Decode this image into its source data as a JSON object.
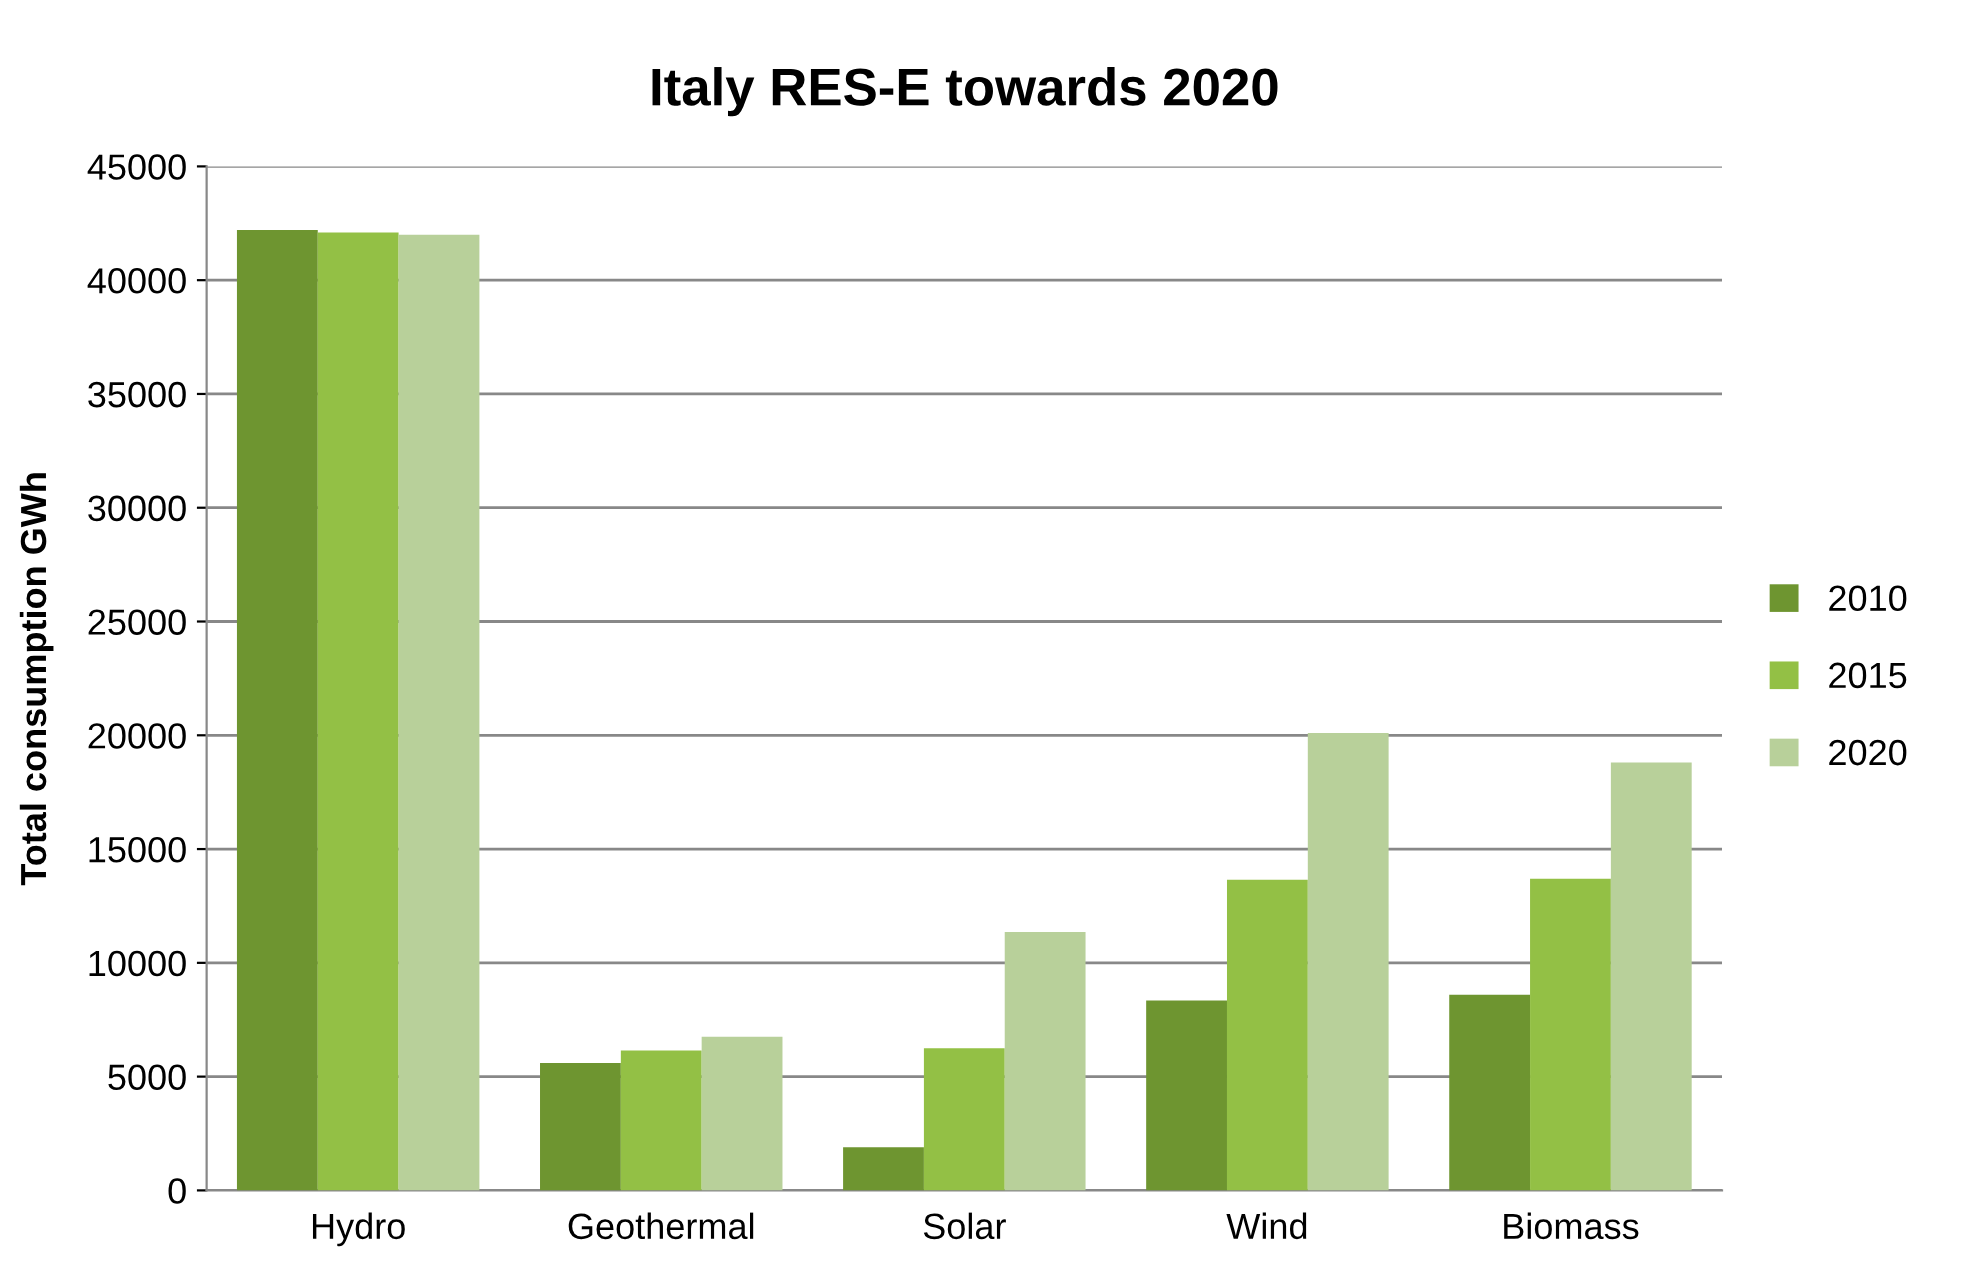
{
  "chart_data": {
    "type": "bar",
    "title": "Italy RES-E towards 2020",
    "ylabel": "Total consumption GWh",
    "categories": [
      "Hydro",
      "Geothermal",
      "Solar",
      "Wind",
      "Biomass"
    ],
    "series": [
      {
        "name": "2010",
        "color": "#6e9530",
        "values": [
          42200,
          5600,
          1900,
          8350,
          8600
        ]
      },
      {
        "name": "2015",
        "color": "#93c045",
        "values": [
          42100,
          6150,
          6250,
          13650,
          13700
        ]
      },
      {
        "name": "2020",
        "color": "#b8d09a",
        "values": [
          42000,
          6750,
          11350,
          20100,
          18800
        ]
      }
    ],
    "ylim": [
      0,
      45000
    ],
    "yticks": [
      0,
      5000,
      10000,
      15000,
      20000,
      25000,
      30000,
      35000,
      40000,
      45000
    ],
    "grid": "y",
    "legend": "right"
  }
}
